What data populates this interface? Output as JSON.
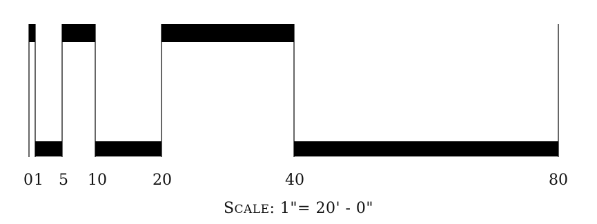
{
  "graphic_scale": {
    "tick_labels": [
      "0",
      "1",
      "5",
      "10",
      "20",
      "40",
      "80"
    ],
    "segments": [
      {
        "from": 0,
        "to": 1,
        "band": "top"
      },
      {
        "from": 1,
        "to": 5,
        "band": "bottom"
      },
      {
        "from": 5,
        "to": 10,
        "band": "top"
      },
      {
        "from": 10,
        "to": 20,
        "band": "bottom"
      },
      {
        "from": 20,
        "to": 40,
        "band": "top"
      },
      {
        "from": 40,
        "to": 80,
        "band": "bottom"
      }
    ],
    "scale_caption_lead": "S",
    "scale_caption_rest": "CALE",
    "scale_caption_tail": ": 1\"= 20' - 0\"",
    "bar_color": "#000000"
  }
}
